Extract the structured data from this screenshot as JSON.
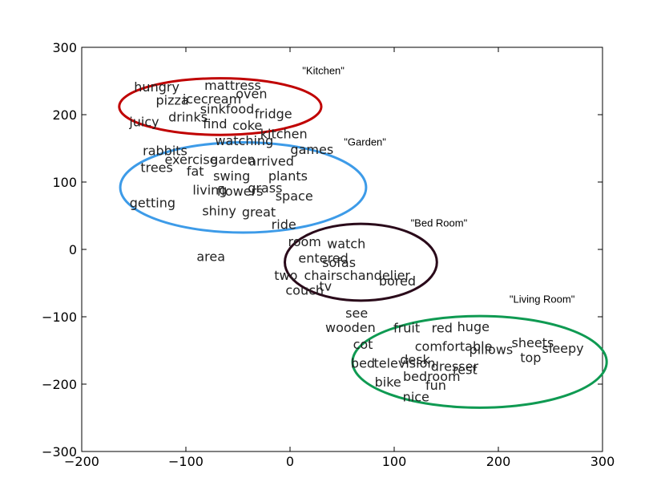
{
  "chart_data": {
    "type": "scatter",
    "title": "",
    "xlabel": "",
    "ylabel": "",
    "xlim": [
      -200,
      300
    ],
    "ylim": [
      -300,
      300
    ],
    "x_ticks": [
      -200,
      -100,
      0,
      100,
      200,
      300
    ],
    "y_ticks": [
      -300,
      -200,
      -100,
      0,
      100,
      200,
      300
    ],
    "x_tick_labels": [
      "−200",
      "−100",
      "0",
      "100",
      "200",
      "300"
    ],
    "y_tick_labels": [
      "−300",
      "−200",
      "−100",
      "0",
      "100",
      "200",
      "300"
    ],
    "grid": false,
    "words": [
      {
        "text": "hungry",
        "x": -128,
        "y": 240
      },
      {
        "text": "mattress",
        "x": -55,
        "y": 242
      },
      {
        "text": "oven",
        "x": -37,
        "y": 230
      },
      {
        "text": "pizza",
        "x": -113,
        "y": 220
      },
      {
        "text": "icecream",
        "x": -75,
        "y": 222
      },
      {
        "text": "sink",
        "x": -74,
        "y": 207
      },
      {
        "text": "food",
        "x": -48,
        "y": 207
      },
      {
        "text": "fridge",
        "x": -16,
        "y": 200
      },
      {
        "text": "drinks",
        "x": -98,
        "y": 195
      },
      {
        "text": "juicy",
        "x": -140,
        "y": 188
      },
      {
        "text": "find",
        "x": -72,
        "y": 185
      },
      {
        "text": "coke",
        "x": -41,
        "y": 183
      },
      {
        "text": "kitchen",
        "x": -6,
        "y": 170
      },
      {
        "text": "watching",
        "x": -44,
        "y": 160
      },
      {
        "text": "games",
        "x": 21,
        "y": 147
      },
      {
        "text": "rabbits",
        "x": -120,
        "y": 145
      },
      {
        "text": "exercise",
        "x": -95,
        "y": 132
      },
      {
        "text": "garden",
        "x": -55,
        "y": 132
      },
      {
        "text": "arrived",
        "x": -18,
        "y": 130
      },
      {
        "text": "trees",
        "x": -128,
        "y": 120
      },
      {
        "text": "fat",
        "x": -91,
        "y": 115
      },
      {
        "text": "swing",
        "x": -56,
        "y": 108
      },
      {
        "text": "plants",
        "x": -2,
        "y": 108
      },
      {
        "text": "grass",
        "x": -24,
        "y": 90
      },
      {
        "text": "living",
        "x": -77,
        "y": 87
      },
      {
        "text": "flowers",
        "x": -48,
        "y": 85
      },
      {
        "text": "space",
        "x": 4,
        "y": 78
      },
      {
        "text": "getting",
        "x": -132,
        "y": 68
      },
      {
        "text": "shiny",
        "x": -68,
        "y": 56
      },
      {
        "text": "great",
        "x": -30,
        "y": 54
      },
      {
        "text": "ride",
        "x": -6,
        "y": 36
      },
      {
        "text": "room",
        "x": 14,
        "y": 10
      },
      {
        "text": "watch",
        "x": 54,
        "y": 7
      },
      {
        "text": "area",
        "x": -76,
        "y": -12
      },
      {
        "text": "entered",
        "x": 32,
        "y": -14
      },
      {
        "text": "sofas",
        "x": 47,
        "y": -21
      },
      {
        "text": "two",
        "x": -4,
        "y": -40
      },
      {
        "text": "chairs",
        "x": 32,
        "y": -40
      },
      {
        "text": "chandelier",
        "x": 83,
        "y": -40
      },
      {
        "text": "bored",
        "x": 103,
        "y": -48
      },
      {
        "text": "tv",
        "x": 34,
        "y": -56
      },
      {
        "text": "couch",
        "x": 14,
        "y": -62
      },
      {
        "text": "see",
        "x": 64,
        "y": -96
      },
      {
        "text": "wooden",
        "x": 58,
        "y": -117
      },
      {
        "text": "fruit",
        "x": 112,
        "y": -118
      },
      {
        "text": "red",
        "x": 146,
        "y": -118
      },
      {
        "text": "huge",
        "x": 176,
        "y": -116
      },
      {
        "text": "cot",
        "x": 70,
        "y": -142
      },
      {
        "text": "comfortable",
        "x": 157,
        "y": -145
      },
      {
        "text": "pillows",
        "x": 193,
        "y": -150
      },
      {
        "text": "sheets",
        "x": 233,
        "y": -140
      },
      {
        "text": "sleepy",
        "x": 262,
        "y": -148
      },
      {
        "text": "top",
        "x": 231,
        "y": -162
      },
      {
        "text": "desk",
        "x": 120,
        "y": -165
      },
      {
        "text": "bed",
        "x": 70,
        "y": -170
      },
      {
        "text": "television",
        "x": 110,
        "y": -170
      },
      {
        "text": "dresser",
        "x": 158,
        "y": -175
      },
      {
        "text": "rest",
        "x": 168,
        "y": -180
      },
      {
        "text": "bedroom",
        "x": 136,
        "y": -190
      },
      {
        "text": "bike",
        "x": 94,
        "y": -198
      },
      {
        "text": "fun",
        "x": 140,
        "y": -203
      },
      {
        "text": "nice",
        "x": 121,
        "y": -220
      }
    ],
    "clusters": [
      {
        "label": "\"Kitchen\"",
        "cx": -67,
        "cy": 212,
        "rx": 97,
        "ry": 42,
        "color": "#c00000",
        "label_x": 32,
        "label_y": 264
      },
      {
        "label": "\"Garden\"",
        "cx": -45,
        "cy": 92,
        "rx": 118,
        "ry": 67,
        "color": "#3d9be8",
        "label_x": 72,
        "label_y": 158
      },
      {
        "label": "\"Bed Room\"",
        "cx": 68,
        "cy": -19,
        "rx": 73,
        "ry": 57,
        "color": "#2a0a1a",
        "label_x": 143,
        "label_y": 38
      },
      {
        "label": "\"Living Room\"",
        "cx": 182,
        "cy": -167,
        "rx": 122,
        "ry": 68,
        "color": "#0f9a52",
        "label_x": 242,
        "label_y": -75
      }
    ]
  }
}
